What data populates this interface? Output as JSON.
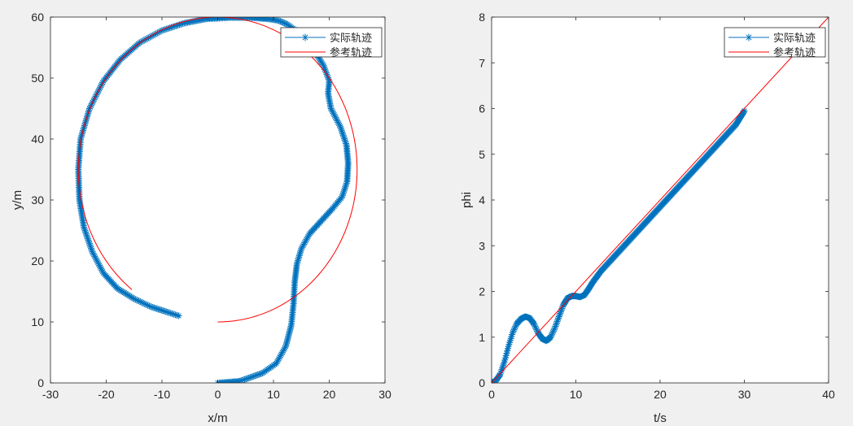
{
  "chart_data": [
    {
      "type": "line",
      "xlabel": "x/m",
      "ylabel": "y/m",
      "xlim": [
        -30,
        30
      ],
      "ylim": [
        0,
        60
      ],
      "xticks": [
        -30,
        -20,
        -10,
        0,
        10,
        20,
        30
      ],
      "yticks": [
        0,
        10,
        20,
        30,
        40,
        50,
        60
      ],
      "grid": false,
      "legend_position": "top-right",
      "series": [
        {
          "name": "实际轨迹",
          "color": "#0072BD",
          "marker": "asterisk",
          "x": [
            0,
            4,
            8,
            10.5,
            12.2,
            13.2,
            13.6,
            13.8,
            14.2,
            15.0,
            16.5,
            18.5,
            20.5,
            22.3,
            23.2,
            23.4,
            23.1,
            22.0,
            20.3,
            19.8,
            20.0,
            19.0,
            17.0,
            14.5,
            12.5,
            11.0,
            9.0,
            6.0,
            2.0,
            -2.0,
            -6.0,
            -10.0,
            -14.0,
            -17.5,
            -20.5,
            -23.0,
            -24.6,
            -25.0,
            -24.8,
            -24.0,
            -22.5,
            -20.5,
            -18.0,
            -15.0,
            -12.0,
            -9.0,
            -7.0
          ],
          "y": [
            0,
            0.3,
            1.6,
            3.2,
            6,
            9.5,
            13,
            16.5,
            19.5,
            22,
            24.5,
            26.5,
            28.5,
            30.5,
            33,
            36,
            39,
            42,
            45,
            47.5,
            49.5,
            52,
            55,
            57.5,
            58.8,
            59.4,
            59.7,
            59.9,
            59.9,
            59.7,
            59.0,
            57.8,
            55.8,
            53.0,
            49.5,
            45.0,
            40.0,
            35.0,
            30.0,
            25.5,
            21.5,
            18.0,
            15.5,
            13.8,
            12.5,
            11.6,
            11.0
          ]
        },
        {
          "name": "参考轨迹",
          "color": "#FF0000",
          "marker": "none",
          "shape": "circle",
          "center": [
            0,
            35
          ],
          "radius": 25,
          "theta_range_deg": [
            -90,
            232
          ]
        }
      ]
    },
    {
      "type": "line",
      "xlabel": "t/s",
      "ylabel": "phi",
      "xlim": [
        0,
        40
      ],
      "ylim": [
        0,
        8
      ],
      "xticks": [
        0,
        10,
        20,
        30,
        40
      ],
      "yticks": [
        0,
        1,
        2,
        3,
        4,
        5,
        6,
        7,
        8
      ],
      "grid": false,
      "legend_position": "top-right",
      "series": [
        {
          "name": "实际轨迹",
          "color": "#0072BD",
          "marker": "asterisk",
          "x": [
            0,
            0.5,
            1,
            1.5,
            2,
            2.5,
            3,
            3.5,
            4,
            4.5,
            5,
            5.5,
            6,
            6.5,
            7,
            7.5,
            8,
            8.5,
            9,
            9.5,
            10,
            10.5,
            11,
            11.5,
            12,
            13,
            14,
            15,
            16,
            17,
            18,
            19,
            20,
            21,
            22,
            23,
            24,
            25,
            26,
            27,
            28,
            29,
            30
          ],
          "y": [
            0,
            0.05,
            0.18,
            0.45,
            0.8,
            1.1,
            1.3,
            1.4,
            1.45,
            1.42,
            1.3,
            1.1,
            0.97,
            0.92,
            1.0,
            1.2,
            1.45,
            1.7,
            1.85,
            1.9,
            1.9,
            1.88,
            1.92,
            2.05,
            2.2,
            2.45,
            2.65,
            2.85,
            3.05,
            3.25,
            3.45,
            3.65,
            3.85,
            4.05,
            4.25,
            4.45,
            4.65,
            4.85,
            5.05,
            5.25,
            5.45,
            5.65,
            5.95
          ]
        },
        {
          "name": "参考轨迹",
          "color": "#FF0000",
          "marker": "none",
          "x": [
            0,
            40
          ],
          "y": [
            0,
            8
          ]
        }
      ]
    }
  ]
}
